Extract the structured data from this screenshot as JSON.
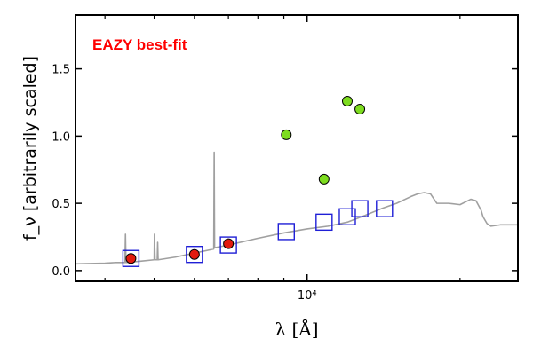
{
  "chart_data": {
    "type": "scatter",
    "title": "",
    "xlabel": "λ [Å]",
    "ylabel": "f_ν [arbitrarily scaled]",
    "xscale": "log",
    "xlim": [
      3500,
      26000
    ],
    "ylim": [
      -0.08,
      1.9
    ],
    "xticks": [
      {
        "value": 10000,
        "label": "10⁴"
      }
    ],
    "yticks": [
      0.0,
      0.5,
      1.0,
      1.5
    ],
    "ytick_labels": [
      "0.0",
      "0.5",
      "1.0",
      "1.5"
    ],
    "grid": false,
    "annotation": {
      "text": "EAZY best-fit",
      "color": "#ff0000"
    },
    "colors": {
      "sed": "#a0a0a0",
      "model_box": "#1f1fd6",
      "obs_red": "#e31a0f",
      "obs_green": "#7ddc1f"
    },
    "series": [
      {
        "kind": "line",
        "role": "best-fit SED",
        "x": [
          3500,
          4000,
          4200,
          4380,
          4390,
          4400,
          4700,
          5000,
          5006,
          5020,
          5070,
          5080,
          5090,
          5500,
          6000,
          6550,
          6563,
          6575,
          7000,
          8000,
          9000,
          10000,
          11000,
          12000,
          13000,
          14000,
          15000,
          16000,
          16500,
          17000,
          17500,
          18000,
          19000,
          20000,
          21000,
          21500,
          22000,
          22200,
          22600,
          23000,
          24000,
          26000
        ],
        "y": [
          0.05,
          0.055,
          0.06,
          0.06,
          0.27,
          0.06,
          0.07,
          0.08,
          0.27,
          0.08,
          0.08,
          0.21,
          0.08,
          0.1,
          0.13,
          0.16,
          0.88,
          0.17,
          0.19,
          0.24,
          0.28,
          0.31,
          0.33,
          0.36,
          0.41,
          0.46,
          0.5,
          0.55,
          0.57,
          0.58,
          0.57,
          0.5,
          0.5,
          0.49,
          0.53,
          0.52,
          0.45,
          0.4,
          0.35,
          0.33,
          0.34,
          0.34
        ]
      },
      {
        "kind": "square",
        "role": "model photometry",
        "x": [
          4500,
          6000,
          7000,
          9100,
          10800,
          12000,
          12700,
          14200
        ],
        "y": [
          0.09,
          0.12,
          0.19,
          0.29,
          0.36,
          0.4,
          0.46,
          0.46
        ]
      },
      {
        "kind": "circle",
        "role": "observed (red)",
        "x": [
          4500,
          6000,
          7000
        ],
        "y": [
          0.09,
          0.12,
          0.2
        ]
      },
      {
        "kind": "circle",
        "role": "observed (green)",
        "x": [
          9100,
          10800,
          12000,
          12700
        ],
        "y": [
          1.01,
          0.68,
          1.26,
          1.2
        ]
      }
    ]
  }
}
